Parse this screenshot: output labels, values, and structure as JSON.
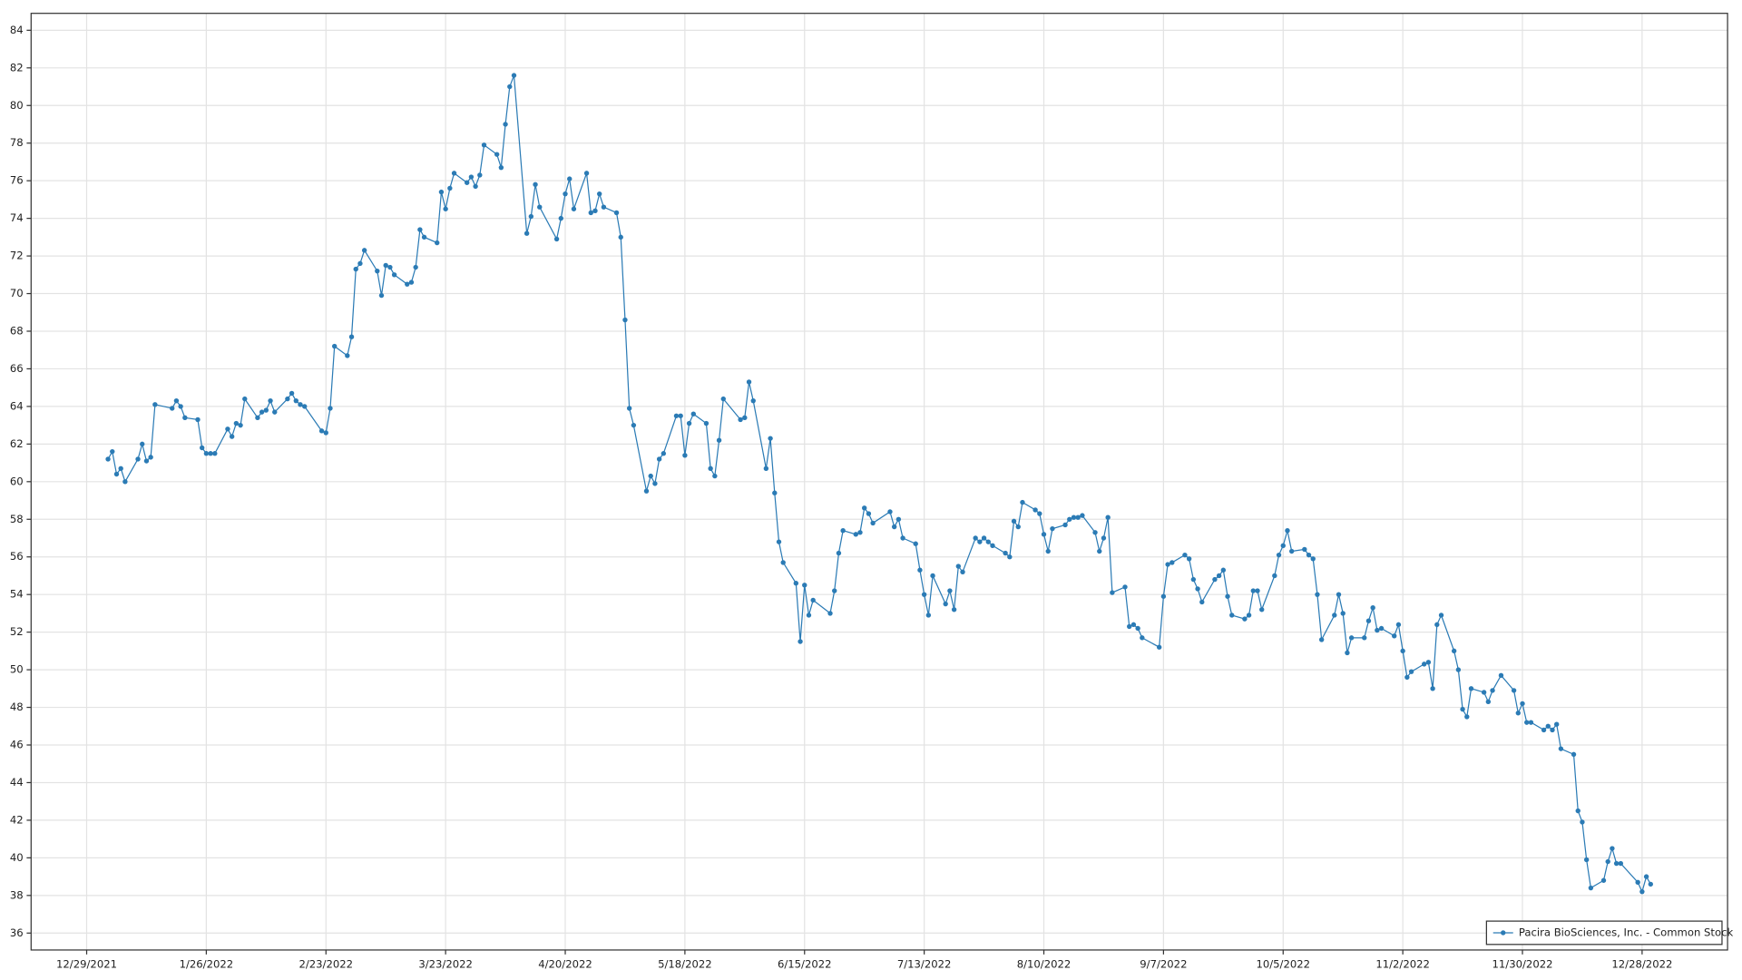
{
  "chart_data": {
    "type": "line",
    "x": [
      "1/3/2022",
      "1/4/2022",
      "1/5/2022",
      "1/6/2022",
      "1/7/2022",
      "1/10/2022",
      "1/11/2022",
      "1/12/2022",
      "1/13/2022",
      "1/14/2022",
      "1/18/2022",
      "1/19/2022",
      "1/20/2022",
      "1/21/2022",
      "1/24/2022",
      "1/25/2022",
      "1/26/2022",
      "1/27/2022",
      "1/28/2022",
      "1/31/2022",
      "2/1/2022",
      "2/2/2022",
      "2/3/2022",
      "2/4/2022",
      "2/7/2022",
      "2/8/2022",
      "2/9/2022",
      "2/10/2022",
      "2/11/2022",
      "2/14/2022",
      "2/15/2022",
      "2/16/2022",
      "2/17/2022",
      "2/18/2022",
      "2/22/2022",
      "2/23/2022",
      "2/24/2022",
      "2/25/2022",
      "2/28/2022",
      "3/1/2022",
      "3/2/2022",
      "3/3/2022",
      "3/4/2022",
      "3/7/2022",
      "3/8/2022",
      "3/9/2022",
      "3/10/2022",
      "3/11/2022",
      "3/14/2022",
      "3/15/2022",
      "3/16/2022",
      "3/17/2022",
      "3/18/2022",
      "3/21/2022",
      "3/22/2022",
      "3/23/2022",
      "3/24/2022",
      "3/25/2022",
      "3/28/2022",
      "3/29/2022",
      "3/30/2022",
      "3/31/2022",
      "4/1/2022",
      "4/4/2022",
      "4/5/2022",
      "4/6/2022",
      "4/7/2022",
      "4/8/2022",
      "4/11/2022",
      "4/12/2022",
      "4/13/2022",
      "4/14/2022",
      "4/18/2022",
      "4/19/2022",
      "4/20/2022",
      "4/21/2022",
      "4/22/2022",
      "4/25/2022",
      "4/26/2022",
      "4/27/2022",
      "4/28/2022",
      "4/29/2022",
      "5/2/2022",
      "5/3/2022",
      "5/4/2022",
      "5/5/2022",
      "5/6/2022",
      "5/9/2022",
      "5/10/2022",
      "5/11/2022",
      "5/12/2022",
      "5/13/2022",
      "5/16/2022",
      "5/17/2022",
      "5/18/2022",
      "5/19/2022",
      "5/20/2022",
      "5/23/2022",
      "5/24/2022",
      "5/25/2022",
      "5/26/2022",
      "5/27/2022",
      "5/31/2022",
      "6/1/2022",
      "6/2/2022",
      "6/3/2022",
      "6/6/2022",
      "6/7/2022",
      "6/8/2022",
      "6/9/2022",
      "6/10/2022",
      "6/13/2022",
      "6/14/2022",
      "6/15/2022",
      "6/16/2022",
      "6/17/2022",
      "6/21/2022",
      "6/22/2022",
      "6/23/2022",
      "6/24/2022",
      "6/27/2022",
      "6/28/2022",
      "6/29/2022",
      "6/30/2022",
      "7/1/2022",
      "7/5/2022",
      "7/6/2022",
      "7/7/2022",
      "7/8/2022",
      "7/11/2022",
      "7/12/2022",
      "7/13/2022",
      "7/14/2022",
      "7/15/2022",
      "7/18/2022",
      "7/19/2022",
      "7/20/2022",
      "7/21/2022",
      "7/22/2022",
      "7/25/2022",
      "7/26/2022",
      "7/27/2022",
      "7/28/2022",
      "7/29/2022",
      "8/1/2022",
      "8/2/2022",
      "8/3/2022",
      "8/4/2022",
      "8/5/2022",
      "8/8/2022",
      "8/9/2022",
      "8/10/2022",
      "8/11/2022",
      "8/12/2022",
      "8/15/2022",
      "8/16/2022",
      "8/17/2022",
      "8/18/2022",
      "8/19/2022",
      "8/22/2022",
      "8/23/2022",
      "8/24/2022",
      "8/25/2022",
      "8/26/2022",
      "8/29/2022",
      "8/30/2022",
      "8/31/2022",
      "9/1/2022",
      "9/2/2022",
      "9/6/2022",
      "9/7/2022",
      "9/8/2022",
      "9/9/2022",
      "9/12/2022",
      "9/13/2022",
      "9/14/2022",
      "9/15/2022",
      "9/16/2022",
      "9/19/2022",
      "9/20/2022",
      "9/21/2022",
      "9/22/2022",
      "9/23/2022",
      "9/26/2022",
      "9/27/2022",
      "9/28/2022",
      "9/29/2022",
      "9/30/2022",
      "10/3/2022",
      "10/4/2022",
      "10/5/2022",
      "10/6/2022",
      "10/7/2022",
      "10/10/2022",
      "10/11/2022",
      "10/12/2022",
      "10/13/2022",
      "10/14/2022",
      "10/17/2022",
      "10/18/2022",
      "10/19/2022",
      "10/20/2022",
      "10/21/2022",
      "10/24/2022",
      "10/25/2022",
      "10/26/2022",
      "10/27/2022",
      "10/28/2022",
      "10/31/2022",
      "11/1/2022",
      "11/2/2022",
      "11/3/2022",
      "11/4/2022",
      "11/7/2022",
      "11/8/2022",
      "11/9/2022",
      "11/10/2022",
      "11/11/2022",
      "11/14/2022",
      "11/15/2022",
      "11/16/2022",
      "11/17/2022",
      "11/18/2022",
      "11/21/2022",
      "11/22/2022",
      "11/23/2022",
      "11/25/2022",
      "11/28/2022",
      "11/29/2022",
      "11/30/2022",
      "12/1/2022",
      "12/2/2022",
      "12/5/2022",
      "12/6/2022",
      "12/7/2022",
      "12/8/2022",
      "12/9/2022",
      "12/12/2022",
      "12/13/2022",
      "12/14/2022",
      "12/15/2022",
      "12/16/2022",
      "12/19/2022",
      "12/20/2022",
      "12/21/2022",
      "12/22/2022",
      "12/23/2022",
      "12/27/2022",
      "12/28/2022",
      "12/29/2022",
      "12/30/2022"
    ],
    "series": [
      {
        "name": "Pacira BioSciences, Inc. - Common Stock",
        "color": "#2b7bb5",
        "values": [
          61.2,
          61.6,
          60.4,
          60.7,
          60.0,
          61.2,
          62.0,
          61.1,
          61.3,
          64.1,
          63.9,
          64.3,
          64.0,
          63.4,
          63.3,
          61.8,
          61.5,
          61.5,
          61.5,
          62.8,
          62.4,
          63.1,
          63.0,
          64.4,
          63.4,
          63.7,
          63.8,
          64.3,
          63.7,
          64.4,
          64.7,
          64.3,
          64.1,
          64.0,
          62.7,
          62.6,
          63.9,
          67.2,
          66.7,
          67.7,
          71.3,
          71.6,
          72.3,
          71.2,
          69.9,
          71.5,
          71.4,
          71.0,
          70.5,
          70.6,
          71.4,
          73.4,
          73.0,
          72.7,
          75.4,
          74.5,
          75.6,
          76.4,
          75.9,
          76.2,
          75.7,
          76.3,
          77.9,
          77.4,
          76.7,
          79.0,
          81.0,
          81.6,
          73.2,
          74.1,
          75.8,
          74.6,
          72.9,
          74.0,
          75.3,
          76.1,
          74.5,
          76.4,
          74.3,
          74.4,
          75.3,
          74.6,
          74.3,
          73.0,
          68.6,
          63.9,
          63.0,
          59.5,
          60.3,
          59.9,
          61.2,
          61.5,
          63.5,
          63.5,
          61.4,
          63.1,
          63.6,
          63.1,
          60.7,
          60.3,
          62.2,
          64.4,
          63.3,
          63.4,
          65.3,
          64.3,
          60.7,
          62.3,
          59.4,
          56.8,
          55.7,
          54.6,
          51.5,
          54.5,
          52.9,
          53.7,
          53.0,
          54.2,
          56.2,
          57.4,
          57.2,
          57.3,
          58.6,
          58.3,
          57.8,
          58.4,
          57.6,
          58.0,
          57.0,
          56.7,
          55.3,
          54.0,
          52.9,
          55.0,
          53.5,
          54.2,
          53.2,
          55.5,
          55.2,
          57.0,
          56.8,
          57.0,
          56.8,
          56.6,
          56.2,
          56.0,
          57.9,
          57.6,
          58.9,
          58.5,
          58.3,
          57.2,
          56.3,
          57.5,
          57.7,
          58.0,
          58.1,
          58.1,
          58.2,
          57.3,
          56.3,
          57.0,
          58.1,
          54.1,
          54.4,
          52.3,
          52.4,
          52.2,
          51.7,
          51.2,
          53.9,
          55.6,
          55.7,
          56.1,
          55.9,
          54.8,
          54.3,
          53.6,
          54.8,
          55.0,
          55.3,
          53.9,
          52.9,
          52.7,
          52.9,
          54.2,
          54.2,
          53.2,
          55.0,
          56.1,
          56.6,
          57.4,
          56.3,
          56.4,
          56.1,
          55.9,
          54.0,
          51.6,
          52.9,
          54.0,
          53.0,
          50.9,
          51.7,
          51.7,
          52.6,
          53.3,
          52.1,
          52.2,
          51.8,
          52.4,
          51.0,
          49.6,
          49.9,
          50.3,
          50.4,
          49.0,
          52.4,
          52.9,
          51.0,
          50.0,
          47.9,
          47.5,
          49.0,
          48.8,
          48.3,
          48.9,
          49.7,
          48.9,
          47.7,
          48.2,
          47.2,
          47.2,
          46.8,
          47.0,
          46.8,
          47.1,
          45.8,
          45.5,
          42.5,
          41.9,
          39.9,
          38.4,
          38.8,
          39.8,
          40.5,
          39.7,
          39.7,
          38.7,
          38.2,
          39.0,
          38.6
        ]
      }
    ],
    "xlim": [
      "12/16/2021",
      "1/17/2023"
    ],
    "xticks": [
      "12/29/2021",
      "1/26/2022",
      "2/23/2022",
      "3/23/2022",
      "4/20/2022",
      "5/18/2022",
      "6/15/2022",
      "7/13/2022",
      "8/10/2022",
      "9/7/2022",
      "10/5/2022",
      "11/2/2022",
      "11/30/2022",
      "12/28/2022"
    ],
    "ylim": [
      35.1,
      84.9
    ],
    "yticks": [
      36,
      38,
      40,
      42,
      44,
      46,
      48,
      50,
      52,
      54,
      56,
      58,
      60,
      62,
      64,
      66,
      68,
      70,
      72,
      74,
      76,
      78,
      80,
      82,
      84
    ],
    "grid": true,
    "legend": "lower right"
  }
}
